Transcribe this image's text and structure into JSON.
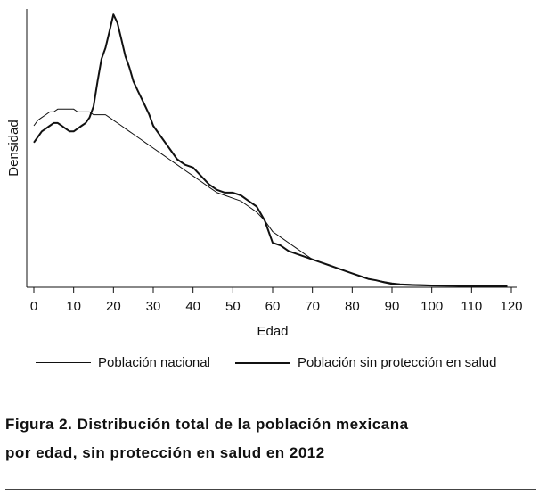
{
  "chart_data": {
    "type": "line",
    "title": "",
    "xlabel": "Edad",
    "ylabel": "Densidad",
    "xlim": [
      -1,
      121
    ],
    "ylim": [
      0,
      1
    ],
    "x_ticks": [
      0,
      10,
      20,
      30,
      40,
      50,
      60,
      70,
      80,
      90,
      100,
      110,
      120
    ],
    "y_ticks_shown": false,
    "grid": false,
    "legend_position": "bottom",
    "series": [
      {
        "name": "Población nacional",
        "line": "thin",
        "x": [
          0,
          1,
          2,
          3,
          4,
          5,
          6,
          7,
          8,
          9,
          10,
          11,
          12,
          13,
          14,
          15,
          16,
          17,
          18,
          19,
          20,
          21,
          22,
          23,
          24,
          25,
          26,
          27,
          28,
          29,
          30,
          32,
          34,
          36,
          38,
          40,
          42,
          44,
          46,
          48,
          50,
          52,
          54,
          56,
          58,
          60,
          62,
          64,
          66,
          68,
          70,
          72,
          74,
          76,
          78,
          80,
          82,
          84,
          86,
          88,
          90,
          92,
          95,
          100,
          105,
          110,
          115,
          119
        ],
        "y": [
          0.58,
          0.6,
          0.61,
          0.62,
          0.63,
          0.63,
          0.64,
          0.64,
          0.64,
          0.64,
          0.64,
          0.63,
          0.63,
          0.63,
          0.63,
          0.62,
          0.62,
          0.62,
          0.62,
          0.61,
          0.6,
          0.59,
          0.58,
          0.57,
          0.56,
          0.55,
          0.54,
          0.53,
          0.52,
          0.51,
          0.5,
          0.48,
          0.46,
          0.44,
          0.42,
          0.4,
          0.38,
          0.36,
          0.34,
          0.33,
          0.32,
          0.31,
          0.29,
          0.27,
          0.24,
          0.2,
          0.18,
          0.16,
          0.14,
          0.12,
          0.1,
          0.09,
          0.08,
          0.07,
          0.06,
          0.05,
          0.04,
          0.03,
          0.025,
          0.02,
          0.015,
          0.012,
          0.01,
          0.008,
          0.006,
          0.005,
          0.004,
          0.004
        ]
      },
      {
        "name": "Población sin protección en salud",
        "line": "thick",
        "x": [
          0,
          1,
          2,
          3,
          4,
          5,
          6,
          7,
          8,
          9,
          10,
          11,
          12,
          13,
          14,
          15,
          16,
          17,
          18,
          19,
          20,
          21,
          22,
          23,
          24,
          25,
          26,
          27,
          28,
          29,
          30,
          32,
          34,
          36,
          38,
          40,
          42,
          44,
          46,
          48,
          50,
          52,
          54,
          56,
          58,
          60,
          62,
          64,
          66,
          68,
          70,
          72,
          74,
          76,
          78,
          80,
          82,
          84,
          86,
          88,
          90,
          92,
          95,
          100,
          105,
          110,
          115,
          119
        ],
        "y": [
          0.52,
          0.54,
          0.56,
          0.57,
          0.58,
          0.59,
          0.59,
          0.58,
          0.57,
          0.56,
          0.56,
          0.57,
          0.58,
          0.59,
          0.61,
          0.65,
          0.74,
          0.82,
          0.86,
          0.92,
          0.98,
          0.95,
          0.89,
          0.83,
          0.79,
          0.74,
          0.71,
          0.68,
          0.65,
          0.62,
          0.58,
          0.54,
          0.5,
          0.46,
          0.44,
          0.43,
          0.4,
          0.37,
          0.35,
          0.34,
          0.34,
          0.33,
          0.31,
          0.29,
          0.24,
          0.16,
          0.15,
          0.13,
          0.12,
          0.11,
          0.1,
          0.09,
          0.08,
          0.07,
          0.06,
          0.05,
          0.04,
          0.03,
          0.025,
          0.018,
          0.012,
          0.01,
          0.008,
          0.006,
          0.005,
          0.004,
          0.004,
          0.004
        ]
      }
    ]
  },
  "legend": {
    "national": "Población nacional",
    "uninsured": "Población sin protección en salud"
  },
  "caption": {
    "line1": "Figura 2. Distribución total de la población mexicana",
    "line2": "por edad, sin protección en salud en 2012"
  }
}
